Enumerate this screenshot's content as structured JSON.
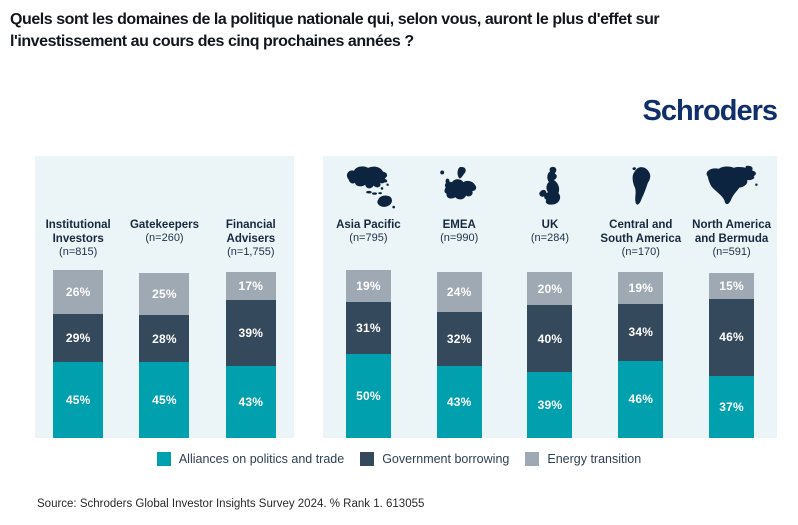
{
  "title": {
    "line1": "Quels sont les domaines de la politique nationale qui, selon vous, auront le plus d'effet sur",
    "line2": "l'investissement au cours des cinq prochaines années ?"
  },
  "brand": {
    "logo_text": "Schroders",
    "logo_color": "#10306a"
  },
  "legend": {
    "items": [
      {
        "label": "Alliances on politics and trade",
        "color": "#00a0ae"
      },
      {
        "label": "Government borrowing",
        "color": "#35495d"
      },
      {
        "label": "Energy transition",
        "color": "#9ea9b4"
      }
    ]
  },
  "source": "Source: Schroders Global Investor Insights Survey 2024. % Rank 1. 613055",
  "chart_data": {
    "type": "bar",
    "subtype": "stacked",
    "unit": "%",
    "legend_position": "bottom",
    "panel_background": "#ebf5f7",
    "series": [
      {
        "name": "Alliances on politics and trade",
        "color": "#00a0ae"
      },
      {
        "name": "Government borrowing",
        "color": "#35495d"
      },
      {
        "name": "Energy transition",
        "color": "#9ea9b4"
      }
    ],
    "note": "values are ordered bottom-to-top matching series order",
    "panels": [
      {
        "name": "by-investor-type",
        "categories": [
          {
            "label": "Institutional Investors",
            "n_label": "(n=815)",
            "values": [
              45,
              29,
              26
            ]
          },
          {
            "label": "Gatekeepers",
            "n_label": "(n=260)",
            "values": [
              45,
              28,
              25
            ]
          },
          {
            "label": "Financial Advisers",
            "n_label": "(n=1,755)",
            "values": [
              43,
              39,
              17
            ]
          }
        ]
      },
      {
        "name": "by-region",
        "categories": [
          {
            "label": "Asia Pacific",
            "n_label": "(n=795)",
            "icon": "asia-pacific-map-icon",
            "values": [
              50,
              31,
              19
            ]
          },
          {
            "label": "EMEA",
            "n_label": "(n=990)",
            "icon": "emea-map-icon",
            "values": [
              43,
              32,
              24
            ]
          },
          {
            "label": "UK",
            "n_label": "(n=284)",
            "icon": "uk-map-icon",
            "values": [
              39,
              40,
              20
            ]
          },
          {
            "label": "Central and South America",
            "n_label": "(n=170)",
            "icon": "central-south-america-map-icon",
            "values": [
              46,
              34,
              19
            ]
          },
          {
            "label": "North America and Bermuda",
            "n_label": "(n=591)",
            "icon": "north-america-bermuda-map-icon",
            "values": [
              37,
              46,
              15
            ]
          }
        ]
      }
    ]
  }
}
